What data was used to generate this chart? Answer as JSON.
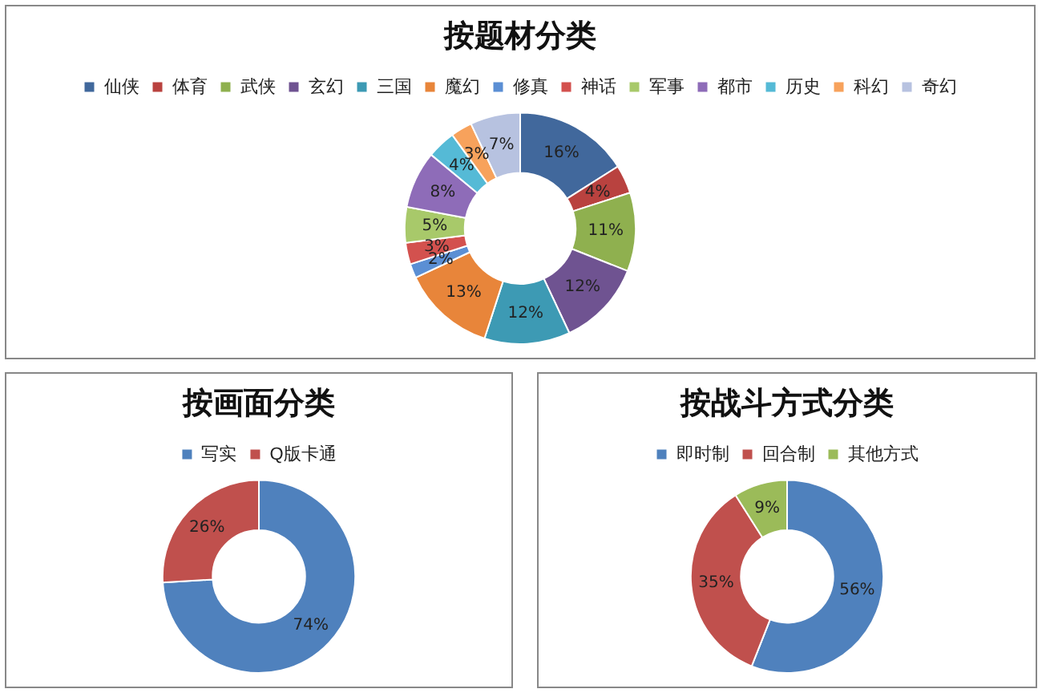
{
  "chart_data": [
    {
      "type": "donut",
      "title": "按题材分类",
      "legend": "top",
      "categories": [
        "仙侠",
        "体育",
        "武侠",
        "玄幻",
        "三国",
        "魔幻",
        "修真",
        "神话",
        "军事",
        "都市",
        "历史",
        "科幻",
        "奇幻"
      ],
      "values": [
        16,
        4,
        11,
        12,
        12,
        13,
        2,
        3,
        5,
        8,
        4,
        3,
        7
      ],
      "colors": [
        "#41689c",
        "#b9423f",
        "#8fb04f",
        "#6f5391",
        "#3d9ab4",
        "#e8853a",
        "#5b8fd4",
        "#d3514e",
        "#a8c96a",
        "#8e6cb8",
        "#55bad6",
        "#f7a25c",
        "#b7c2e0"
      ],
      "value_labels": [
        "16%",
        "4%",
        "11%",
        "12%",
        "12%",
        "13%",
        "2%",
        "3%",
        "5%",
        "8%",
        "4%",
        "3%",
        "7%"
      ]
    },
    {
      "type": "donut",
      "title": "按画面分类",
      "legend": "top",
      "categories": [
        "写实",
        "Q版卡通"
      ],
      "values": [
        74,
        26
      ],
      "colors": [
        "#4f81bd",
        "#c0504d"
      ],
      "value_labels": [
        "74%",
        "26%"
      ]
    },
    {
      "type": "donut",
      "title": "按战斗方式分类",
      "legend": "top",
      "categories": [
        "即时制",
        "回合制",
        "其他方式"
      ],
      "values": [
        56,
        35,
        9
      ],
      "colors": [
        "#4f81bd",
        "#c0504d",
        "#9bbb59"
      ],
      "value_labels": [
        "56%",
        "35%",
        "9%"
      ]
    }
  ]
}
